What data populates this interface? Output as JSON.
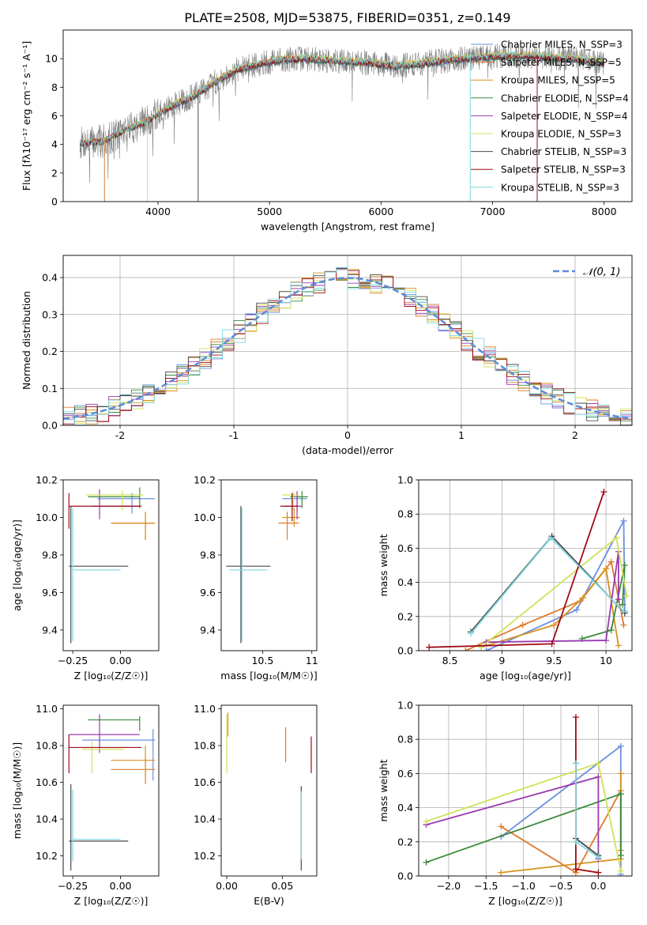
{
  "title": "PLATE=2508, MJD=53875, FIBERID=0351, z=0.149",
  "colors": [
    "#6a8fe0",
    "#e07a2a",
    "#d8901c",
    "#3a8a3a",
    "#9a3ab0",
    "#cfe35a",
    "#4a4a4a",
    "#a00c14",
    "#7fd8e0"
  ],
  "legend": {
    "models": [
      "Chabrier MILES, N_SSP=3",
      "Salpeter MILES, N_SSP=5",
      "Kroupa MILES, N_SSP=5",
      "Chabrier ELODIE, N_SSP=4",
      "Salpeter ELODIE, N_SSP=4",
      "Kroupa ELODIE, N_SSP=3",
      "Chabrier STELIB, N_SSP=3",
      "Salpeter STELIB, N_SSP=3",
      "Kroupa STELIB, N_SSP=3"
    ],
    "normal": "𝒩(0, 1)"
  },
  "chart_data": [
    {
      "type": "line",
      "panel": "spectrum",
      "xlabel": "wavelength [Angstrom, rest frame]",
      "ylabel": "Flux [fλ10⁻¹⁷ erg cm⁻² s⁻¹ A⁻¹]",
      "xlim": [
        3150,
        8250
      ],
      "ylim": [
        0,
        12
      ],
      "xticks": [
        4000,
        5000,
        6000,
        7000,
        8000
      ],
      "yticks": [
        0,
        2,
        4,
        6,
        8,
        10
      ],
      "continuum": {
        "x": [
          3300,
          3500,
          3700,
          3900,
          4100,
          4300,
          4500,
          4700,
          4900,
          5100,
          5300,
          5500,
          5700,
          5900,
          6100,
          6300,
          6500,
          6700,
          6900,
          7100,
          7300,
          7500,
          7700,
          7900,
          8000
        ],
        "y": [
          4.1,
          4.2,
          5.0,
          5.6,
          6.6,
          7.3,
          8.3,
          9.2,
          9.6,
          9.9,
          10.0,
          9.9,
          9.8,
          9.7,
          9.5,
          9.6,
          9.8,
          10.0,
          10.1,
          10.2,
          10.2,
          10.1,
          10.0,
          9.8,
          9.7
        ]
      },
      "grid": false
    },
    {
      "type": "line",
      "panel": "residual-histogram",
      "xlabel": "(data-model)/error",
      "ylabel": "Normed distribution",
      "xlim": [
        -2.5,
        2.5
      ],
      "ylim": [
        0,
        0.46
      ],
      "xticks": [
        -2,
        -1,
        0,
        1,
        2
      ],
      "yticks": [
        0.0,
        0.1,
        0.2,
        0.3,
        0.4
      ],
      "bin_width": 0.1,
      "grid": true,
      "legend_position": "top-right"
    },
    {
      "type": "scatter",
      "panel": "age-vs-Z",
      "xlabel": "Z [log₁₀(Z/Z☉)]",
      "ylabel": "age [log₁₀(age/yr)]",
      "xlim": [
        -0.3,
        0.2
      ],
      "ylim": [
        9.29,
        10.2
      ],
      "xticks": [
        -0.25,
        0.0
      ],
      "xticklabels": [
        "−0.25",
        "0.00"
      ],
      "yticks": [
        9.4,
        9.6,
        9.8,
        10.0,
        10.2
      ],
      "points": [
        {
          "x": 0.06,
          "xlo": -0.12,
          "xhi": 0.18,
          "y": 10.1,
          "ylo": 10.02,
          "yhi": 10.13
        },
        {
          "x": 0.13,
          "xlo": -0.05,
          "xhi": 0.18,
          "y": 9.97,
          "ylo": 9.88,
          "yhi": 10.03
        },
        {
          "x": 0.13,
          "xlo": -0.05,
          "xhi": 0.18,
          "y": 9.97,
          "ylo": 9.88,
          "yhi": 10.02
        },
        {
          "x": 0.1,
          "xlo": -0.17,
          "xhi": 0.1,
          "y": 10.11,
          "ylo": 10.05,
          "yhi": 10.16
        },
        {
          "x": -0.11,
          "xlo": -0.15,
          "xhi": 0.1,
          "y": 10.06,
          "ylo": 9.99,
          "yhi": 10.15
        },
        {
          "x": 0.01,
          "xlo": -0.18,
          "xhi": 0.12,
          "y": 10.12,
          "ylo": 10.04,
          "yhi": 10.14
        },
        {
          "x": -0.26,
          "xlo": -0.27,
          "xhi": 0.04,
          "y": 9.74,
          "ylo": 9.33,
          "yhi": 10.06
        },
        {
          "x": -0.27,
          "xlo": -0.27,
          "xhi": 0.11,
          "y": 10.06,
          "ylo": 9.94,
          "yhi": 10.13
        },
        {
          "x": -0.25,
          "xlo": -0.25,
          "xhi": 0.0,
          "y": 9.72,
          "ylo": 9.34,
          "yhi": 10.05
        }
      ]
    },
    {
      "type": "scatter",
      "panel": "age-vs-mass",
      "xlabel": "mass [log₁₀(M/M☉)]",
      "ylabel": "",
      "xlim": [
        10.08,
        11.05
      ],
      "ylim": [
        9.29,
        10.2
      ],
      "xticks": [
        10.5,
        11.0
      ],
      "yticks": [
        9.4,
        9.6,
        9.8,
        10.0,
        10.2
      ],
      "points": [
        {
          "x": 10.85,
          "xlo": 10.7,
          "xhi": 10.95,
          "y": 10.1,
          "ylo": 10.02,
          "yhi": 10.13
        },
        {
          "x": 10.75,
          "xlo": 10.66,
          "xhi": 10.87,
          "y": 9.97,
          "ylo": 9.88,
          "yhi": 10.03
        },
        {
          "x": 10.82,
          "xlo": 10.7,
          "xhi": 10.88,
          "y": 10.0,
          "ylo": 9.95,
          "yhi": 10.05
        },
        {
          "x": 10.9,
          "xlo": 10.78,
          "xhi": 10.96,
          "y": 10.11,
          "ylo": 10.05,
          "yhi": 10.14
        },
        {
          "x": 10.85,
          "xlo": 10.72,
          "xhi": 10.9,
          "y": 10.06,
          "ylo": 9.99,
          "yhi": 10.14
        },
        {
          "x": 10.81,
          "xlo": 10.7,
          "xhi": 10.87,
          "y": 10.12,
          "ylo": 10.04,
          "yhi": 10.14
        },
        {
          "x": 10.28,
          "xlo": 10.13,
          "xhi": 10.58,
          "y": 9.74,
          "ylo": 9.33,
          "yhi": 10.06
        },
        {
          "x": 10.8,
          "xlo": 10.68,
          "xhi": 10.86,
          "y": 10.06,
          "ylo": 9.98,
          "yhi": 10.13
        },
        {
          "x": 10.29,
          "xlo": 10.16,
          "xhi": 10.55,
          "y": 9.72,
          "ylo": 9.34,
          "yhi": 10.05
        }
      ]
    },
    {
      "type": "line",
      "panel": "mass-weight-vs-age",
      "xlabel": "age [log₁₀(age/yr)]",
      "ylabel": "mass weight",
      "xlim": [
        8.2,
        10.25
      ],
      "ylim": [
        0,
        1
      ],
      "xticks": [
        8.5,
        9.0,
        9.5,
        10.0
      ],
      "yticks": [
        0.0,
        0.2,
        0.4,
        0.6,
        0.8,
        1.0
      ],
      "series": [
        {
          "x": [
            8.85,
            9.72,
            10.17,
            10.18
          ],
          "y": [
            0.0,
            0.24,
            0.76,
            0.23
          ]
        },
        {
          "x": [
            8.65,
            9.2,
            9.75,
            10.05,
            10.17
          ],
          "y": [
            0.0,
            0.15,
            0.29,
            0.52,
            0.15
          ]
        },
        {
          "x": [
            8.8,
            9.5,
            9.78,
            10.0,
            10.12
          ],
          "y": [
            0.02,
            0.15,
            0.31,
            0.48,
            0.03
          ]
        },
        {
          "x": [
            9.77,
            10.05,
            10.18,
            10.16
          ],
          "y": [
            0.07,
            0.12,
            0.5,
            0.27
          ]
        },
        {
          "x": [
            8.85,
            10.0,
            10.12,
            10.12
          ],
          "y": [
            0.05,
            0.06,
            0.58,
            0.3
          ]
        },
        {
          "x": [
            8.8,
            10.1,
            10.2
          ],
          "y": [
            0.02,
            0.66,
            0.32
          ]
        },
        {
          "x": [
            8.7,
            9.48,
            10.18
          ],
          "y": [
            0.11,
            0.67,
            0.22
          ]
        },
        {
          "x": [
            8.3,
            9.48,
            9.98
          ],
          "y": [
            0.02,
            0.04,
            0.93
          ]
        },
        {
          "x": [
            8.7,
            9.47,
            10.17
          ],
          "y": [
            0.1,
            0.66,
            0.23
          ]
        }
      ],
      "grid": true
    },
    {
      "type": "scatter",
      "panel": "mass-vs-Z",
      "xlabel": "Z [log₁₀(Z/Z☉)]",
      "ylabel": "mass [log₁₀(M/M☉)]",
      "xlim": [
        -0.3,
        0.2
      ],
      "ylim": [
        10.09,
        11.02
      ],
      "xticks": [
        -0.25,
        0.0
      ],
      "xticklabels": [
        "−0.25",
        "0.00"
      ],
      "yticks": [
        10.2,
        10.4,
        10.6,
        10.8,
        11.0
      ],
      "points": [
        {
          "x": 0.17,
          "xlo": -0.2,
          "xhi": 0.18,
          "y": 10.83,
          "ylo": 10.61,
          "yhi": 10.89
        },
        {
          "x": 0.13,
          "xlo": -0.05,
          "xhi": 0.18,
          "y": 10.67,
          "ylo": 10.59,
          "yhi": 10.74
        },
        {
          "x": 0.13,
          "xlo": -0.05,
          "xhi": 0.18,
          "y": 10.72,
          "ylo": 10.62,
          "yhi": 10.8
        },
        {
          "x": 0.1,
          "xlo": -0.17,
          "xhi": 0.1,
          "y": 10.94,
          "ylo": 10.88,
          "yhi": 10.96
        },
        {
          "x": -0.11,
          "xlo": -0.27,
          "xhi": 0.1,
          "y": 10.86,
          "ylo": 10.76,
          "yhi": 10.97
        },
        {
          "x": -0.15,
          "xlo": -0.2,
          "xhi": 0.02,
          "y": 10.78,
          "ylo": 10.65,
          "yhi": 10.82
        },
        {
          "x": -0.26,
          "xlo": -0.27,
          "xhi": 0.04,
          "y": 10.28,
          "ylo": 10.12,
          "yhi": 10.59
        },
        {
          "x": -0.27,
          "xlo": -0.27,
          "xhi": 0.11,
          "y": 10.79,
          "ylo": 10.65,
          "yhi": 10.86
        },
        {
          "x": -0.25,
          "xlo": -0.25,
          "xhi": 0.0,
          "y": 10.29,
          "ylo": 10.17,
          "yhi": 10.56
        }
      ]
    },
    {
      "type": "scatter",
      "panel": "mass-vs-EBV",
      "xlabel": "E(B-V)",
      "ylabel": "",
      "xlim": [
        -0.005,
        0.081
      ],
      "ylim": [
        10.09,
        11.02
      ],
      "xticks": [
        0.0,
        0.05
      ],
      "xticklabels": [
        "0.00",
        "0.05"
      ],
      "yticks": [
        10.2,
        10.4,
        10.6,
        10.8,
        11.0
      ],
      "points": [
        {
          "x": 0.001,
          "y": 10.96,
          "ylo": 10.85,
          "yhi": 10.98
        },
        {
          "x": 0.053,
          "y": 10.8,
          "ylo": 10.71,
          "yhi": 10.9
        },
        {
          "x": 0.0,
          "y": 10.8,
          "ylo": 10.65,
          "yhi": 10.97
        },
        {
          "x": 0.076,
          "y": 10.78,
          "ylo": 10.65,
          "yhi": 10.85
        },
        {
          "x": 0.067,
          "y": 10.3,
          "ylo": 10.12,
          "yhi": 10.58
        },
        {
          "x": 0.067,
          "y": 10.35,
          "ylo": 10.18,
          "yhi": 10.55
        }
      ]
    },
    {
      "type": "line",
      "panel": "mass-weight-vs-Z",
      "xlabel": "Z [log₁₀(Z/Z☉)]",
      "ylabel": "mass weight",
      "xlim": [
        -2.4,
        0.45
      ],
      "ylim": [
        0,
        1
      ],
      "xticks": [
        -2.0,
        -1.5,
        -1.0,
        -0.5,
        0.0
      ],
      "xticklabels": [
        "−2.0",
        "−1.5",
        "−1.0",
        "−0.5",
        "0.0"
      ],
      "yticks": [
        0.0,
        0.2,
        0.4,
        0.6,
        0.8,
        1.0
      ],
      "series": [
        {
          "x": [
            -1.3,
            0.3,
            0.3
          ],
          "y": [
            0.23,
            0.76,
            0.01
          ]
        },
        {
          "x": [
            -1.3,
            -0.3,
            0.3,
            0.3
          ],
          "y": [
            0.29,
            0.02,
            0.5,
            0.15
          ]
        },
        {
          "x": [
            -1.3,
            0.3,
            0.3
          ],
          "y": [
            0.02,
            0.1,
            0.6
          ]
        },
        {
          "x": [
            -2.3,
            0.3,
            0.3
          ],
          "y": [
            0.08,
            0.48,
            0.12
          ]
        },
        {
          "x": [
            -2.3,
            0.0,
            0.0
          ],
          "y": [
            0.3,
            0.58,
            0.1
          ]
        },
        {
          "x": [
            -2.3,
            0.0,
            0.3
          ],
          "y": [
            0.32,
            0.66,
            0.03
          ]
        },
        {
          "x": [
            -0.3,
            -0.3,
            0.0
          ],
          "y": [
            0.66,
            0.22,
            0.12
          ]
        },
        {
          "x": [
            -0.3,
            -0.3,
            0.0
          ],
          "y": [
            0.93,
            0.04,
            0.02
          ]
        },
        {
          "x": [
            -0.3,
            -0.3,
            0.0
          ],
          "y": [
            0.66,
            0.2,
            0.11
          ]
        }
      ],
      "grid": true
    }
  ]
}
